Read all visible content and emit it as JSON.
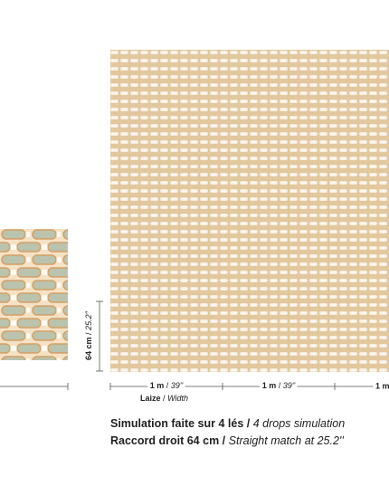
{
  "separator": "/",
  "height": {
    "metric": "64 cm",
    "imperial": "25.2''"
  },
  "widths": [
    {
      "metric": "1 m",
      "imperial": "39''"
    },
    {
      "metric": "1 m",
      "imperial": "39''"
    },
    {
      "metric": "1 m"
    }
  ],
  "width_label": {
    "fr": "Laize",
    "en": "Width"
  },
  "caption": {
    "line1": {
      "fr": "Simulation faite sur 4 lés",
      "en": "4 drops simulation"
    },
    "line2": {
      "fr": "Raccord droit 64 cm",
      "en": "Straight match at 25.2''"
    }
  }
}
